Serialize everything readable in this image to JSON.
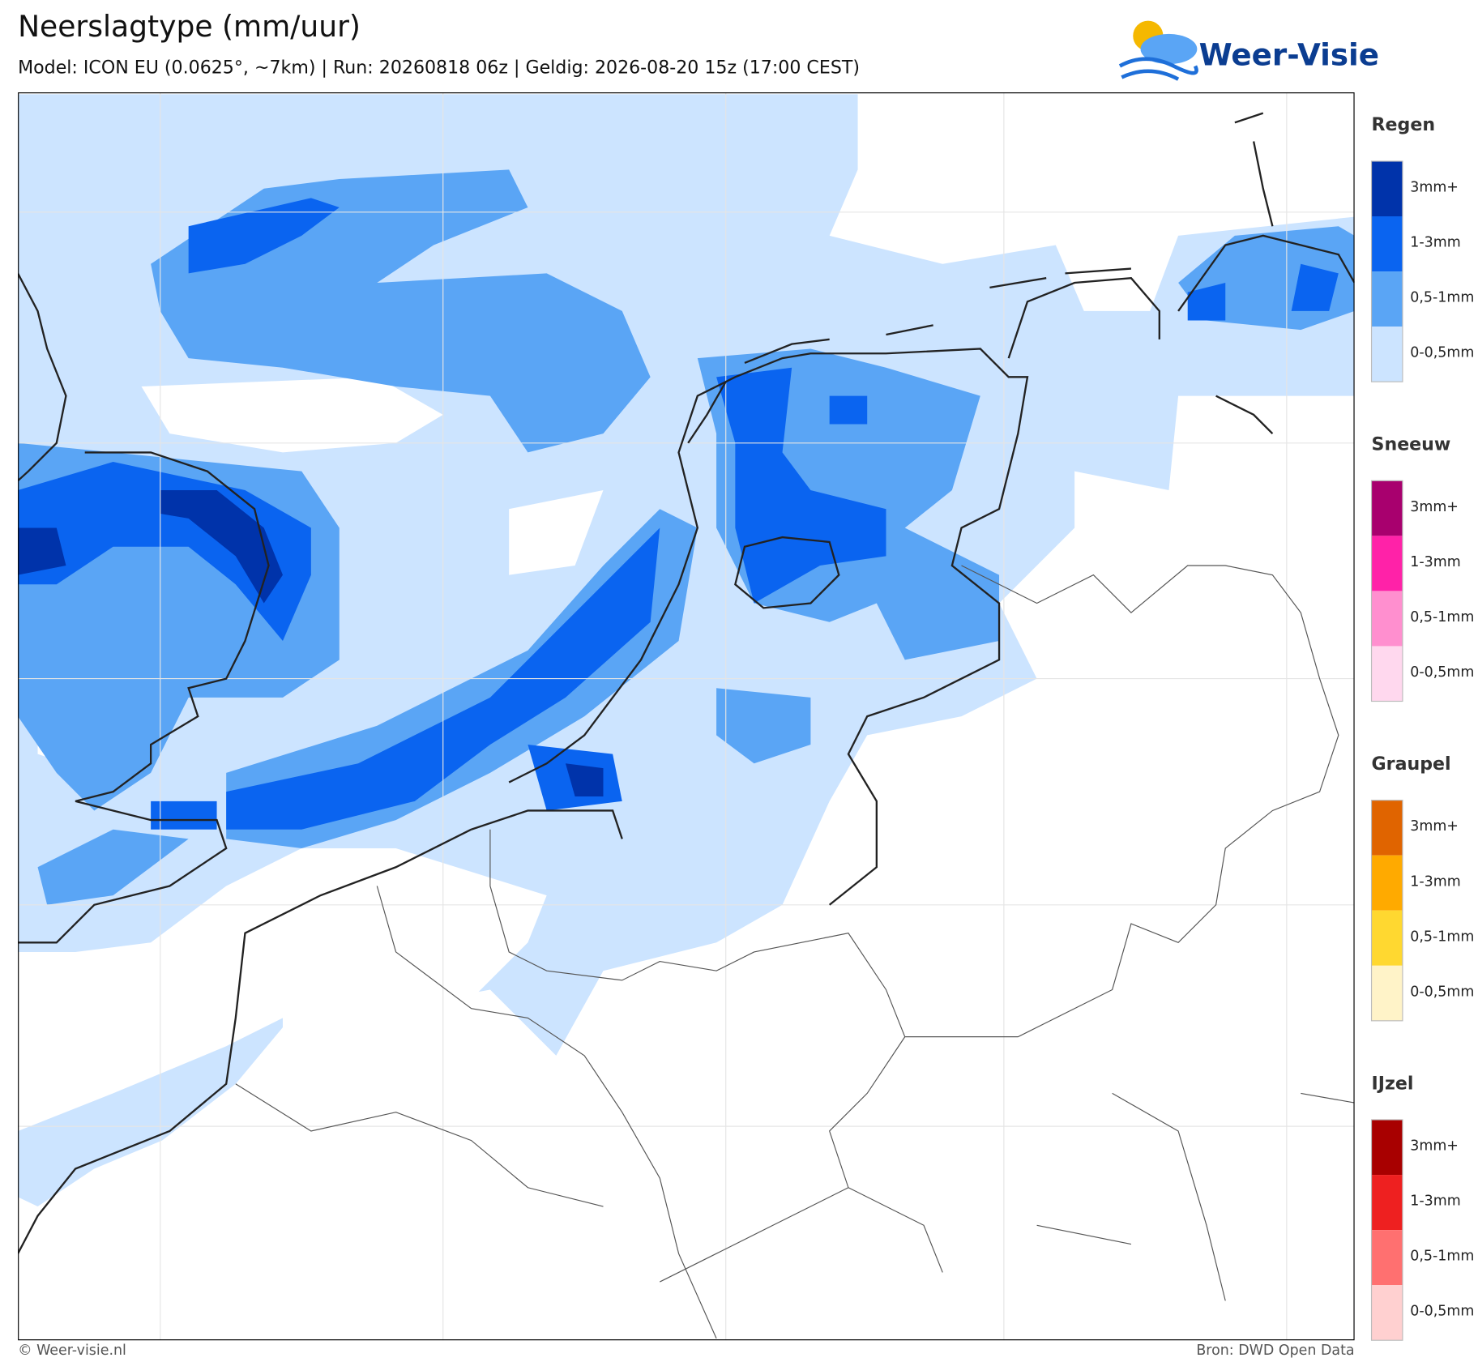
{
  "header": {
    "title": "Neerslagtype (mm/uur)",
    "subtitle": "Model: ICON EU (0.0625°, ~7km)  |  Run: 20260818 06z  |  Geldig: 2026-08-20 15z (17:00 CEST)"
  },
  "logo": {
    "text": "Weer-Visie"
  },
  "legend": {
    "groups": [
      {
        "title": "Regen",
        "items": [
          {
            "label": "3mm+",
            "color": "#0033aa"
          },
          {
            "label": "1-3mm",
            "color": "#0a64f0"
          },
          {
            "label": "0,5-1mm",
            "color": "#5aa5f5"
          },
          {
            "label": "0-0,5mm",
            "color": "#cce4ff"
          }
        ]
      },
      {
        "title": "Sneeuw",
        "items": [
          {
            "label": "3mm+",
            "color": "#a8006e"
          },
          {
            "label": "1-3mm",
            "color": "#ff22a8"
          },
          {
            "label": "0,5-1mm",
            "color": "#ff8fcf"
          },
          {
            "label": "0-0,5mm",
            "color": "#ffd8ee"
          }
        ]
      },
      {
        "title": "Graupel",
        "items": [
          {
            "label": "3mm+",
            "color": "#e06400"
          },
          {
            "label": "1-3mm",
            "color": "#ffaa00"
          },
          {
            "label": "0,5-1mm",
            "color": "#ffd830"
          },
          {
            "label": "0-0,5mm",
            "color": "#fff3c8"
          }
        ]
      },
      {
        "title": "IJzel",
        "items": [
          {
            "label": "3mm+",
            "color": "#a80000"
          },
          {
            "label": "1-3mm",
            "color": "#ee2020"
          },
          {
            "label": "0,5-1mm",
            "color": "#ff7070"
          },
          {
            "label": "0-0,5mm",
            "color": "#ffd0d0"
          }
        ]
      }
    ]
  },
  "footer": {
    "left": "© Weer-visie.nl",
    "right": "Bron: DWD Open Data"
  }
}
